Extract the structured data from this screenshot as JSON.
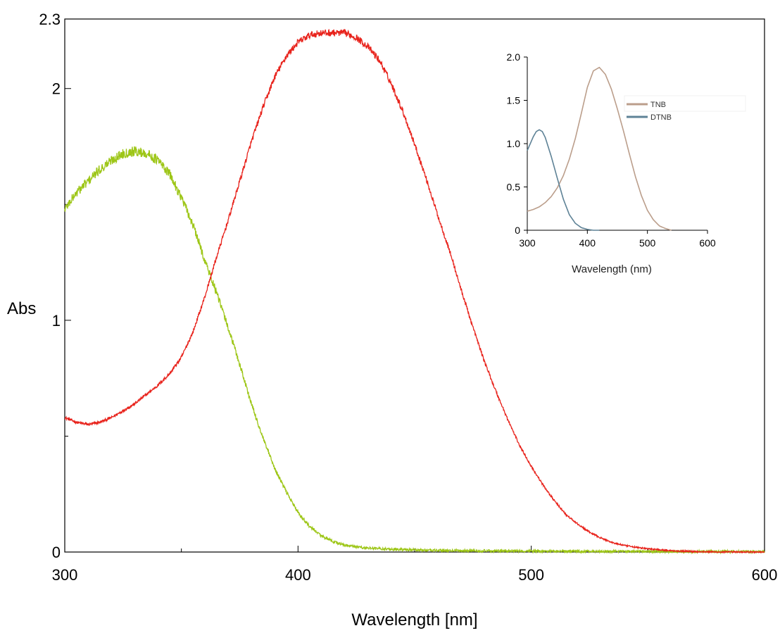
{
  "chart_data": [
    {
      "type": "line",
      "xlabel": "Wavelength [nm]",
      "ylabel": "Abs",
      "xlim": [
        300,
        600
      ],
      "ylim": [
        0,
        2.3
      ],
      "xticks": [
        300,
        400,
        500,
        600
      ],
      "yticks": [
        0,
        1,
        2,
        2.3
      ],
      "xtick_labels": [
        "300",
        "400",
        "500",
        "600"
      ],
      "ytick_labels": [
        "0",
        "1",
        "2",
        "2.3"
      ],
      "noisy": true,
      "grid": false,
      "series": [
        {
          "color": "#e8231c",
          "x": [
            300,
            305,
            310,
            315,
            320,
            325,
            330,
            335,
            340,
            345,
            350,
            355,
            360,
            365,
            370,
            375,
            380,
            385,
            390,
            395,
            400,
            405,
            410,
            415,
            420,
            425,
            430,
            435,
            440,
            445,
            450,
            455,
            460,
            465,
            470,
            475,
            480,
            485,
            490,
            495,
            500,
            505,
            510,
            515,
            520,
            525,
            530,
            535,
            540,
            545,
            550,
            555,
            560,
            565,
            570,
            575,
            580,
            590,
            600
          ],
          "values": [
            0.58,
            0.56,
            0.55,
            0.56,
            0.58,
            0.61,
            0.64,
            0.68,
            0.72,
            0.77,
            0.84,
            0.95,
            1.1,
            1.27,
            1.43,
            1.6,
            1.77,
            1.92,
            2.05,
            2.14,
            2.2,
            2.23,
            2.24,
            2.24,
            2.24,
            2.22,
            2.18,
            2.12,
            2.02,
            1.9,
            1.76,
            1.61,
            1.45,
            1.3,
            1.13,
            0.97,
            0.82,
            0.69,
            0.57,
            0.46,
            0.37,
            0.29,
            0.22,
            0.16,
            0.12,
            0.085,
            0.06,
            0.04,
            0.028,
            0.02,
            0.014,
            0.01,
            0.006,
            0.004,
            0.002,
            0.001,
            0.0,
            0.0,
            0.0
          ]
        },
        {
          "color": "#9dc617",
          "x": [
            300,
            305,
            310,
            315,
            320,
            325,
            330,
            335,
            340,
            345,
            350,
            355,
            360,
            365,
            370,
            375,
            380,
            385,
            390,
            395,
            400,
            405,
            410,
            415,
            420,
            425,
            430,
            440,
            450,
            460,
            480,
            500,
            520,
            550,
            600
          ],
          "values": [
            1.48,
            1.55,
            1.6,
            1.65,
            1.69,
            1.72,
            1.73,
            1.72,
            1.69,
            1.63,
            1.53,
            1.41,
            1.26,
            1.12,
            0.97,
            0.81,
            0.64,
            0.49,
            0.36,
            0.26,
            0.17,
            0.11,
            0.07,
            0.045,
            0.03,
            0.022,
            0.017,
            0.012,
            0.009,
            0.007,
            0.005,
            0.004,
            0.003,
            0.002,
            0.002
          ]
        }
      ]
    },
    {
      "type": "line",
      "xlabel": "Wavelength (nm)",
      "ylabel": "",
      "xlim": [
        300,
        600
      ],
      "ylim": [
        0,
        2.0
      ],
      "xticks": [
        300,
        400,
        500,
        600
      ],
      "yticks": [
        0,
        0.5,
        1.0,
        1.5,
        2.0
      ],
      "xtick_labels": [
        "300",
        "400",
        "500",
        "600"
      ],
      "ytick_labels": [
        "0",
        "0.5",
        "1.0",
        "1.5",
        "2.0"
      ],
      "legend_position": "top-right",
      "grid": false,
      "series": [
        {
          "name": "TNB",
          "color": "#bb9e8b",
          "x": [
            300,
            310,
            320,
            330,
            340,
            350,
            360,
            370,
            380,
            390,
            400,
            410,
            420,
            430,
            440,
            450,
            460,
            470,
            480,
            490,
            500,
            510,
            520,
            530,
            540
          ],
          "values": [
            0.22,
            0.24,
            0.27,
            0.32,
            0.39,
            0.49,
            0.63,
            0.82,
            1.06,
            1.35,
            1.65,
            1.84,
            1.88,
            1.8,
            1.63,
            1.4,
            1.15,
            0.88,
            0.62,
            0.4,
            0.23,
            0.12,
            0.05,
            0.02,
            0.0
          ]
        },
        {
          "name": "DTNB",
          "color": "#5e8296",
          "x": [
            300,
            305,
            310,
            315,
            320,
            325,
            330,
            340,
            350,
            360,
            370,
            380,
            390,
            400,
            410,
            420
          ],
          "values": [
            0.92,
            1.0,
            1.08,
            1.14,
            1.16,
            1.14,
            1.07,
            0.85,
            0.6,
            0.36,
            0.18,
            0.08,
            0.03,
            0.01,
            0.0,
            0.0
          ]
        }
      ]
    }
  ]
}
